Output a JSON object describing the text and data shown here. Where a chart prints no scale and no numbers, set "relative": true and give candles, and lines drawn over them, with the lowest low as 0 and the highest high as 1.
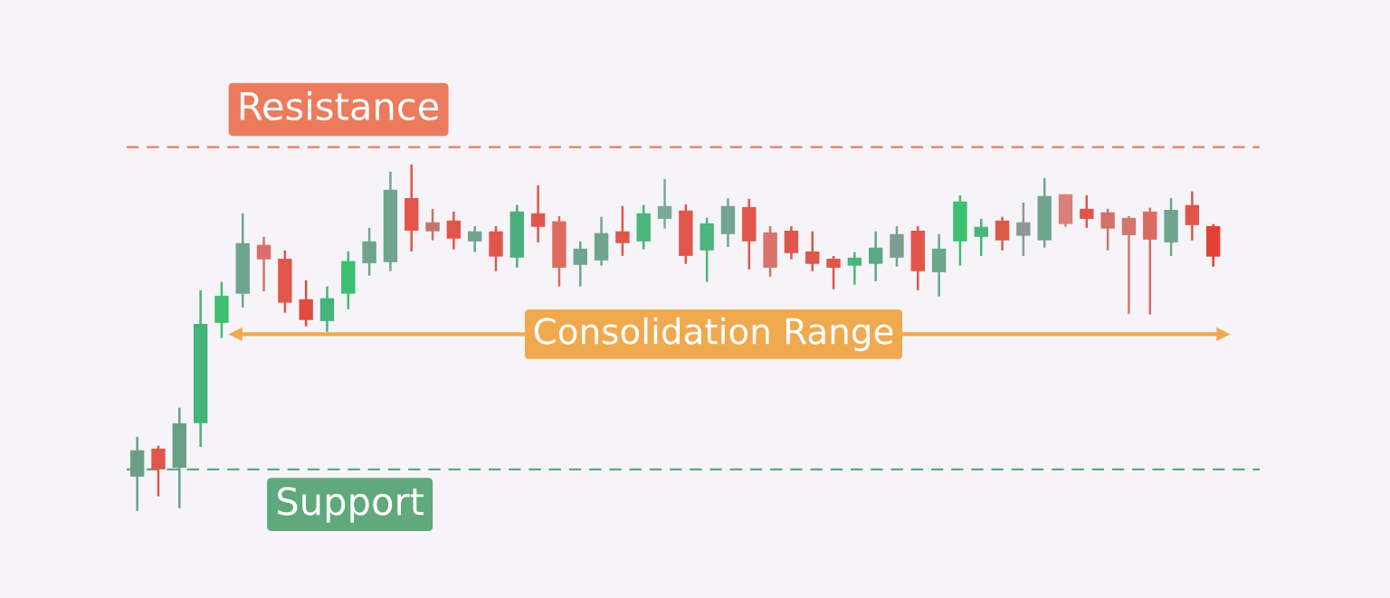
{
  "chart_data": {
    "type": "candlestick",
    "relative": true,
    "categories": [
      null,
      null,
      null,
      null,
      null,
      null,
      null,
      null,
      null,
      null,
      null,
      null,
      null,
      null,
      null,
      null,
      null,
      null,
      null,
      null,
      null,
      null,
      null,
      null,
      null,
      null,
      null,
      null,
      null,
      null,
      null,
      null,
      null,
      null,
      null,
      null,
      null,
      null,
      null,
      null,
      null,
      null,
      null,
      null,
      null,
      null,
      null,
      null,
      null,
      null,
      null,
      null
    ],
    "ohlc": [
      [
        0.099,
        0.214,
        0.0,
        0.175
      ],
      [
        0.18,
        0.188,
        0.042,
        0.12
      ],
      [
        0.125,
        0.298,
        0.008,
        0.253
      ],
      [
        0.253,
        0.637,
        0.185,
        0.54
      ],
      [
        0.543,
        0.661,
        0.499,
        0.621
      ],
      [
        0.627,
        0.859,
        0.587,
        0.773
      ],
      [
        0.768,
        0.791,
        0.634,
        0.726
      ],
      [
        0.728,
        0.752,
        0.572,
        0.601
      ],
      [
        0.611,
        0.666,
        0.533,
        0.551
      ],
      [
        0.548,
        0.648,
        0.517,
        0.614
      ],
      [
        0.627,
        0.749,
        0.582,
        0.721
      ],
      [
        0.715,
        0.817,
        0.679,
        0.778
      ],
      [
        0.718,
        0.979,
        0.692,
        0.927
      ],
      [
        0.903,
        1.0,
        0.749,
        0.809
      ],
      [
        0.833,
        0.872,
        0.781,
        0.807
      ],
      [
        0.838,
        0.864,
        0.755,
        0.786
      ],
      [
        0.778,
        0.822,
        0.747,
        0.807
      ],
      [
        0.807,
        0.822,
        0.692,
        0.734
      ],
      [
        0.731,
        0.883,
        0.702,
        0.864
      ],
      [
        0.859,
        0.94,
        0.775,
        0.82
      ],
      [
        0.836,
        0.851,
        0.648,
        0.702
      ],
      [
        0.71,
        0.778,
        0.648,
        0.757
      ],
      [
        0.723,
        0.849,
        0.708,
        0.802
      ],
      [
        0.807,
        0.88,
        0.736,
        0.773
      ],
      [
        0.778,
        0.883,
        0.755,
        0.859
      ],
      [
        0.843,
        0.958,
        0.815,
        0.88
      ],
      [
        0.867,
        0.885,
        0.713,
        0.736
      ],
      [
        0.752,
        0.846,
        0.661,
        0.83
      ],
      [
        0.799,
        0.903,
        0.762,
        0.88
      ],
      [
        0.877,
        0.901,
        0.697,
        0.778
      ],
      [
        0.804,
        0.822,
        0.676,
        0.702
      ],
      [
        0.809,
        0.822,
        0.726,
        0.744
      ],
      [
        0.749,
        0.807,
        0.692,
        0.713
      ],
      [
        0.728,
        0.736,
        0.64,
        0.702
      ],
      [
        0.708,
        0.747,
        0.653,
        0.731
      ],
      [
        0.713,
        0.807,
        0.663,
        0.76
      ],
      [
        0.731,
        0.822,
        0.705,
        0.799
      ],
      [
        0.809,
        0.822,
        0.637,
        0.692
      ],
      [
        0.689,
        0.799,
        0.619,
        0.757
      ],
      [
        0.778,
        0.911,
        0.708,
        0.893
      ],
      [
        0.791,
        0.843,
        0.736,
        0.82
      ],
      [
        0.838,
        0.849,
        0.752,
        0.781
      ],
      [
        0.794,
        0.89,
        0.736,
        0.833
      ],
      [
        0.781,
        0.961,
        0.76,
        0.909
      ],
      [
        0.914,
        0.914,
        0.82,
        0.828
      ],
      [
        0.872,
        0.911,
        0.817,
        0.843
      ],
      [
        0.862,
        0.872,
        0.752,
        0.815
      ],
      [
        0.846,
        0.851,
        0.569,
        0.796
      ],
      [
        0.864,
        0.875,
        0.567,
        0.783
      ],
      [
        0.775,
        0.903,
        0.736,
        0.869
      ],
      [
        0.883,
        0.922,
        0.781,
        0.825
      ],
      [
        0.822,
        0.828,
        0.705,
        0.734
      ]
    ],
    "colors": [
      "#6a9f88",
      "#e0564b",
      "#6a9f88",
      "#45b37a",
      "#3cbf6f",
      "#6fa58f",
      "#d8716a",
      "#e0564b",
      "#e14b3f",
      "#45b37a",
      "#3cbf6f",
      "#6fa58f",
      "#6fa58f",
      "#e0564b",
      "#c0766a",
      "#e0564b",
      "#6fa58f",
      "#e0564b",
      "#4cae7e",
      "#e0564b",
      "#dd6a5e",
      "#6fa58f",
      "#6fa58f",
      "#e0564b",
      "#4cb47d",
      "#7aa896",
      "#e0564b",
      "#4cb47d",
      "#72a491",
      "#e0564b",
      "#d7736a",
      "#e0564b",
      "#e0564b",
      "#e0564b",
      "#4cb47d",
      "#5aaa85",
      "#7d9c94",
      "#e0564b",
      "#6aa88a",
      "#3cbf6f",
      "#4cb47d",
      "#dc5a48",
      "#8c9a97",
      "#6fa58f",
      "#d9807a",
      "#e0564b",
      "#cf7268",
      "#d2776f",
      "#dc6a62",
      "#6fa58f",
      "#e0564b",
      "#e43f36"
    ],
    "ref_lines": [
      {
        "axis": "y",
        "value": 1.05,
        "label": "Resistance",
        "color": "#ec7b5e",
        "line_style": "dashed"
      },
      {
        "axis": "y",
        "value": 0.12,
        "label": "Support",
        "color": "#5fa97c",
        "line_style": "dashed"
      },
      {
        "axis": "y",
        "value": 0.51,
        "label": "Consolidation Range",
        "color": "#f0a94f",
        "line_style": "solid"
      }
    ]
  }
}
